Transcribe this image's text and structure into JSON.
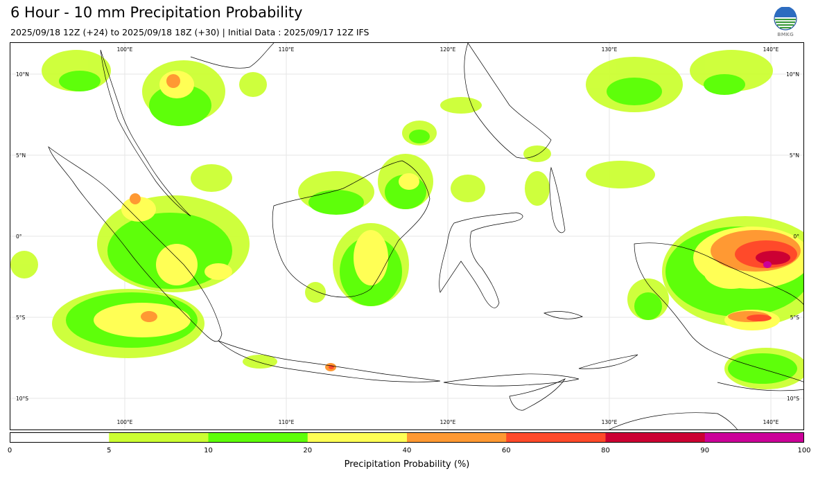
{
  "header": {
    "title": "6 Hour - 10 mm Precipitation Probability",
    "subtitle": "2025/09/18 12Z (+24) to 2025/09/18 18Z (+30) | Initial Data : 2025/09/17 12Z IFS",
    "logo_text": "BMKG"
  },
  "map": {
    "lon_range": [
      93,
      142
    ],
    "lat_range": [
      -12,
      12
    ],
    "lon_labels": [
      "100°E",
      "110°E",
      "120°E",
      "130°E",
      "140°E"
    ],
    "lat_labels": [
      "10°N",
      "5°N",
      "0°",
      "5°S",
      "10°S"
    ],
    "lon_values": [
      100,
      110,
      120,
      130,
      140
    ],
    "lat_values": [
      10,
      5,
      0,
      -5,
      -10
    ],
    "precip_areas": [
      {
        "region": "Sumatra",
        "level": "10-20",
        "color": "#5eff0a"
      },
      {
        "region": "SW Sumatra Sea",
        "level": "20-40",
        "color": "#ffff55"
      },
      {
        "region": "Malay Peninsula / Gulf of Thailand",
        "level": "20-40",
        "color": "#ffff55"
      },
      {
        "region": "Borneo",
        "level": "20-40",
        "color": "#ffff55"
      },
      {
        "region": "Papua north coast",
        "level": "80-90",
        "color": "#cc0033"
      },
      {
        "region": "Papua south",
        "level": "60-80",
        "color": "#ff4a2a"
      }
    ]
  },
  "colorbar": {
    "ticks": [
      "0",
      "5",
      "10",
      "20",
      "40",
      "60",
      "80",
      "90",
      "100"
    ],
    "colors": [
      "#ffffff",
      "#ccff33",
      "#5eff0a",
      "#ffff55",
      "#ff9933",
      "#ff4a2a",
      "#cc0033",
      "#cc0099"
    ],
    "label": "Precipitation Probability (%)"
  }
}
